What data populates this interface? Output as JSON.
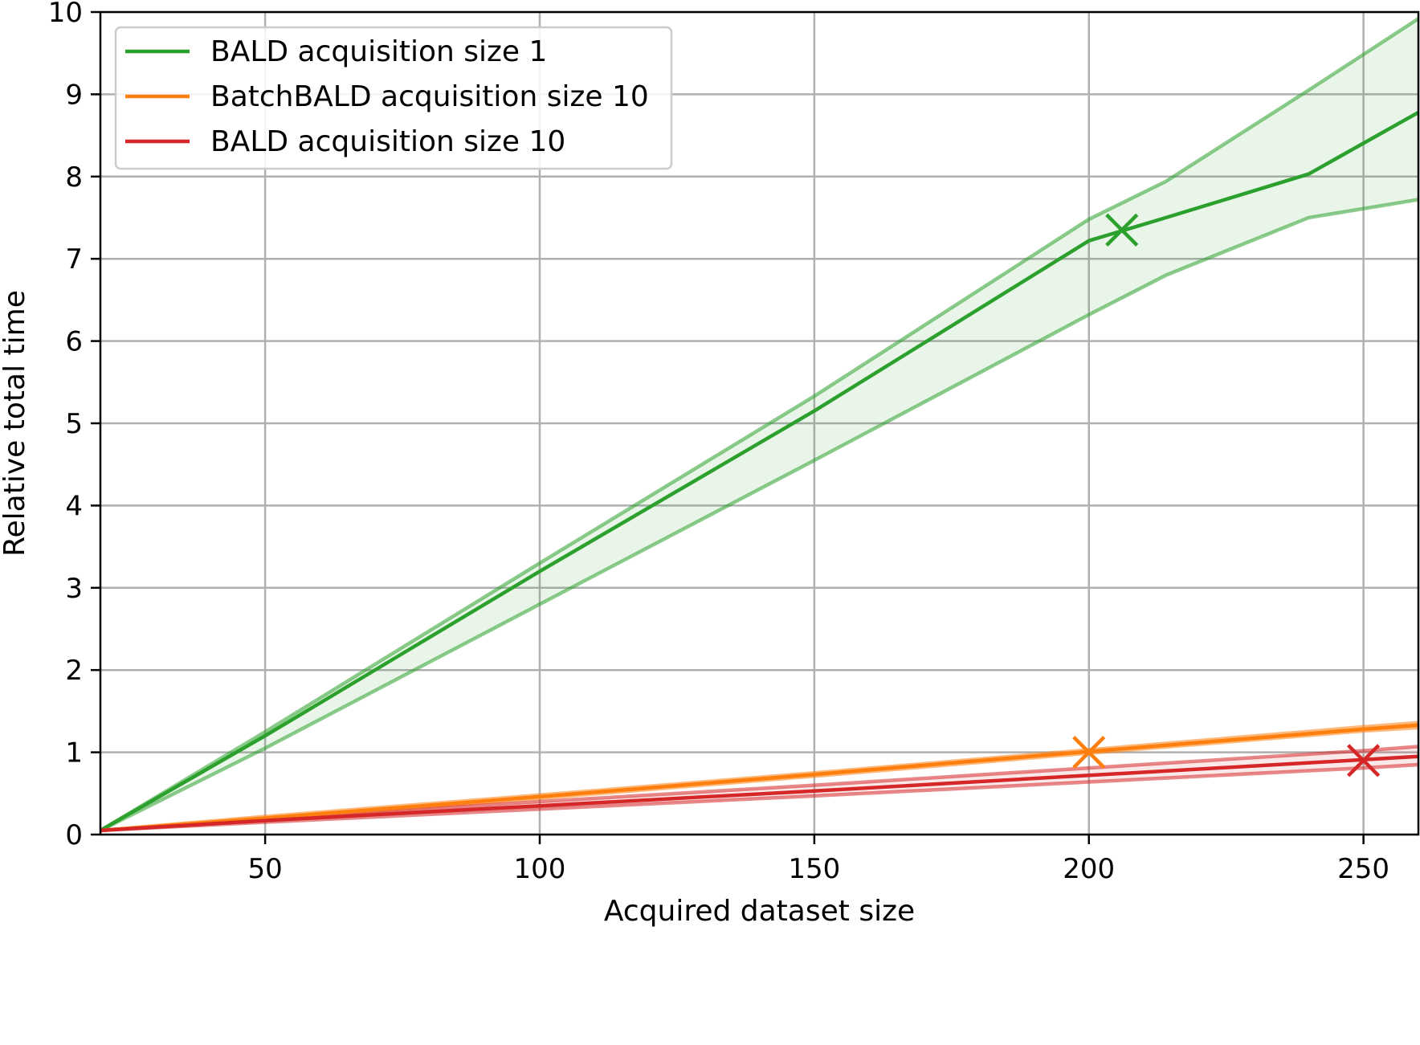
{
  "chart_data": {
    "type": "line",
    "xlabel": "Acquired dataset size",
    "ylabel": "Relative total time",
    "xlim": [
      20,
      260
    ],
    "ylim": [
      0,
      10
    ],
    "xticks": [
      50,
      100,
      150,
      200,
      250
    ],
    "yticks": [
      0,
      1,
      2,
      3,
      4,
      5,
      6,
      7,
      8,
      9,
      10
    ],
    "grid": true,
    "legend_position": "top-left",
    "series": [
      {
        "name": "BALD acquisition size 1",
        "color": "#2ca02c",
        "x": [
          20,
          50,
          100,
          150,
          200,
          214,
          240,
          260
        ],
        "y": [
          0.05,
          1.2,
          3.2,
          5.15,
          7.22,
          7.5,
          8.03,
          8.78
        ],
        "upper": [
          0.05,
          1.25,
          3.3,
          5.33,
          7.48,
          7.94,
          9.05,
          9.92
        ],
        "lower": [
          0.05,
          1.05,
          2.8,
          4.55,
          6.32,
          6.8,
          7.5,
          7.72
        ],
        "marker": {
          "x": 206,
          "y": 7.35
        }
      },
      {
        "name": "BatchBALD acquisition size 10",
        "color": "#ff7f0e",
        "x": [
          20,
          50,
          100,
          150,
          200,
          250,
          260
        ],
        "y": [
          0.05,
          0.2,
          0.46,
          0.73,
          1.01,
          1.28,
          1.33
        ],
        "upper": [
          0.05,
          0.22,
          0.48,
          0.75,
          1.03,
          1.31,
          1.36
        ],
        "lower": [
          0.05,
          0.18,
          0.44,
          0.71,
          0.99,
          1.26,
          1.3
        ],
        "marker": {
          "x": 200,
          "y": 1.0
        }
      },
      {
        "name": "BALD acquisition size 10",
        "color": "#d62728",
        "x": [
          20,
          50,
          100,
          150,
          200,
          250,
          260
        ],
        "y": [
          0.05,
          0.17,
          0.35,
          0.53,
          0.72,
          0.91,
          0.95
        ],
        "upper": [
          0.05,
          0.19,
          0.4,
          0.6,
          0.81,
          1.02,
          1.07
        ],
        "lower": [
          0.05,
          0.15,
          0.31,
          0.47,
          0.64,
          0.81,
          0.85
        ],
        "marker": {
          "x": 250,
          "y": 0.9
        }
      }
    ]
  }
}
